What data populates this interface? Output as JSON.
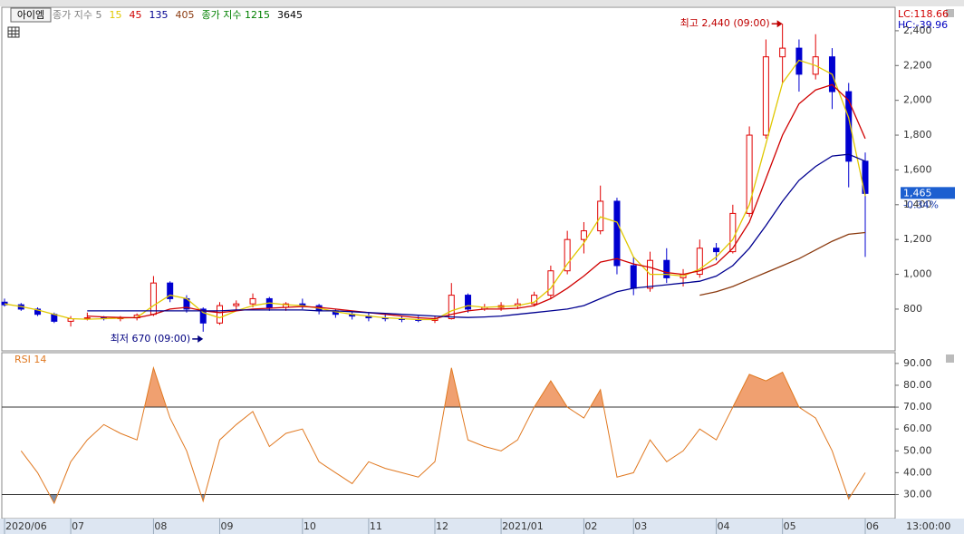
{
  "chart_data": [
    {
      "type": "candlestick",
      "stock_name": "아이엠",
      "legend_lead": {
        "text": "종가 지수 5",
        "color": "#7f7f7f"
      },
      "legend_tail": [
        {
          "text": "종가 지수 1215",
          "color": "#008000"
        },
        {
          "text": "3645",
          "color": "#000000"
        }
      ],
      "corner_labels": [
        {
          "text": "LC:118.66",
          "color": "#d00000"
        },
        {
          "text": "HC:-39.96",
          "color": "#0000c0"
        }
      ],
      "annotations": [
        {
          "text": "최고 2,440 (09:00)",
          "color": "#c00000",
          "index": 47,
          "at": "high"
        },
        {
          "text": "최저 670 (09:00)",
          "color": "#000080",
          "index": 12,
          "at": "low"
        }
      ],
      "last_label": "1,465",
      "change_label": "-0.34%",
      "time_label": "13:00:00",
      "up_color": "#e00000",
      "down_color": "#0000d0",
      "categories": [
        "2020/06",
        null,
        null,
        null,
        "07",
        null,
        null,
        null,
        null,
        "08",
        null,
        null,
        null,
        "09",
        null,
        null,
        null,
        null,
        "10",
        null,
        null,
        null,
        "11",
        null,
        null,
        null,
        "12",
        null,
        null,
        null,
        "2021/01",
        null,
        null,
        null,
        null,
        "02",
        null,
        null,
        "03",
        null,
        null,
        null,
        null,
        "04",
        null,
        null,
        null,
        "05",
        null,
        null,
        null,
        null,
        "06"
      ],
      "open": [
        840,
        825,
        800,
        770,
        730,
        745,
        750,
        745,
        750,
        770,
        950,
        860,
        800,
        720,
        820,
        830,
        860,
        810,
        830,
        820,
        790,
        770,
        760,
        750,
        745,
        740,
        735,
        745,
        880,
        800,
        810,
        820,
        830,
        880,
        1020,
        1200,
        1250,
        1420,
        1050,
        920,
        1080,
        980,
        1000,
        1150,
        1130,
        1350,
        1800,
        2250,
        2300,
        2150,
        2250,
        2050,
        1650
      ],
      "high": [
        860,
        835,
        810,
        780,
        760,
        780,
        760,
        760,
        775,
        990,
        960,
        880,
        810,
        840,
        850,
        890,
        870,
        840,
        860,
        830,
        800,
        790,
        780,
        770,
        760,
        760,
        760,
        950,
        890,
        830,
        840,
        860,
        900,
        1050,
        1250,
        1300,
        1510,
        1440,
        1100,
        1130,
        1150,
        1030,
        1200,
        1180,
        1400,
        1850,
        2350,
        2440,
        2350,
        2380,
        2300,
        2100,
        1700
      ],
      "low": [
        815,
        790,
        760,
        720,
        700,
        735,
        735,
        730,
        735,
        760,
        840,
        780,
        670,
        710,
        790,
        810,
        790,
        790,
        800,
        770,
        750,
        740,
        730,
        730,
        725,
        725,
        720,
        740,
        780,
        790,
        790,
        800,
        815,
        860,
        1000,
        1120,
        1230,
        1000,
        880,
        900,
        950,
        930,
        980,
        1080,
        1120,
        1330,
        1780,
        2100,
        2050,
        2120,
        1950,
        1500,
        1100
      ],
      "close": [
        825,
        800,
        770,
        730,
        745,
        750,
        745,
        750,
        765,
        950,
        860,
        800,
        720,
        820,
        830,
        860,
        810,
        830,
        820,
        790,
        770,
        760,
        750,
        745,
        740,
        735,
        745,
        880,
        800,
        810,
        820,
        830,
        880,
        1020,
        1200,
        1250,
        1420,
        1050,
        920,
        1080,
        980,
        1000,
        1150,
        1130,
        1350,
        1800,
        2250,
        2300,
        2150,
        2250,
        2050,
        1650,
        1465
      ],
      "series": [
        {
          "name": "15",
          "color": "#e0c800",
          "values": [
            830,
            815,
            795,
            770,
            745,
            742,
            745,
            748,
            752,
            820,
            880,
            860,
            780,
            750,
            790,
            820,
            835,
            825,
            820,
            805,
            785,
            770,
            760,
            750,
            745,
            740,
            740,
            790,
            820,
            810,
            815,
            820,
            840,
            920,
            1060,
            1180,
            1330,
            1300,
            1100,
            1000,
            1000,
            990,
            1030,
            1100,
            1200,
            1400,
            1750,
            2100,
            2230,
            2200,
            2150,
            1900,
            1450
          ]
        },
        {
          "name": "45",
          "color": "#d00000",
          "values": [
            null,
            null,
            null,
            null,
            null,
            760,
            755,
            752,
            750,
            770,
            800,
            810,
            790,
            780,
            790,
            800,
            805,
            810,
            815,
            810,
            800,
            790,
            780,
            770,
            760,
            750,
            745,
            770,
            790,
            800,
            800,
            805,
            820,
            860,
            920,
            990,
            1070,
            1090,
            1060,
            1040,
            1010,
            1000,
            1020,
            1060,
            1150,
            1300,
            1550,
            1800,
            1980,
            2060,
            2090,
            2000,
            1780
          ]
        },
        {
          "name": "135",
          "color": "#000090",
          "values": [
            null,
            null,
            null,
            null,
            null,
            790,
            790,
            790,
            790,
            790,
            790,
            790,
            790,
            790,
            795,
            795,
            795,
            795,
            795,
            790,
            790,
            785,
            780,
            775,
            770,
            765,
            760,
            755,
            752,
            755,
            760,
            770,
            780,
            790,
            800,
            820,
            860,
            900,
            920,
            930,
            940,
            950,
            960,
            990,
            1050,
            1150,
            1280,
            1420,
            1540,
            1620,
            1680,
            1690,
            1650
          ]
        },
        {
          "name": "405",
          "color": "#8b3a0f",
          "values": [
            null,
            null,
            null,
            null,
            null,
            null,
            null,
            null,
            null,
            null,
            null,
            null,
            null,
            null,
            null,
            null,
            null,
            null,
            null,
            null,
            null,
            null,
            null,
            null,
            null,
            null,
            null,
            null,
            null,
            null,
            null,
            null,
            null,
            null,
            null,
            null,
            null,
            null,
            null,
            null,
            null,
            null,
            880,
            900,
            930,
            970,
            1010,
            1050,
            1090,
            1140,
            1190,
            1230,
            1240
          ]
        }
      ],
      "ylim": [
        560,
        2535
      ],
      "yticks": [
        800,
        {
          "value": 1000,
          "label": "1,000"
        },
        {
          "value": 1200,
          "label": "1,200"
        },
        {
          "value": 1400,
          "label": "1,400"
        },
        {
          "value": 1600,
          "label": "1,600"
        },
        {
          "value": 1800,
          "label": "1,800"
        },
        {
          "value": 2000,
          "label": "2,000"
        },
        {
          "value": 2200,
          "label": "2,200"
        },
        {
          "value": 2400,
          "label": "2,400"
        }
      ]
    },
    {
      "type": "line",
      "title": "RSI 14",
      "color": "#e07820",
      "values": [
        null,
        50,
        40,
        26,
        45,
        55,
        62,
        58,
        55,
        88,
        65,
        50,
        27,
        55,
        62,
        68,
        52,
        58,
        60,
        45,
        40,
        35,
        45,
        42,
        40,
        38,
        45,
        88,
        55,
        52,
        50,
        55,
        70,
        82,
        70,
        65,
        78,
        38,
        40,
        55,
        45,
        50,
        60,
        55,
        70,
        85,
        82,
        86,
        70,
        65,
        50,
        28,
        40
      ],
      "levels": [
        70,
        30
      ],
      "over_color": "#f0a070",
      "under_color": "#7f90a8",
      "ylim": [
        19,
        94.5
      ],
      "yticks": [
        {
          "value": 30,
          "label": "30.00"
        },
        {
          "value": 40,
          "label": "40.00"
        },
        {
          "value": 50,
          "label": "50.00"
        },
        {
          "value": 60,
          "label": "60.00"
        },
        {
          "value": 70,
          "label": "70.00"
        },
        {
          "value": 80,
          "label": "80.00"
        },
        {
          "value": 90,
          "label": "90.00"
        }
      ]
    }
  ]
}
